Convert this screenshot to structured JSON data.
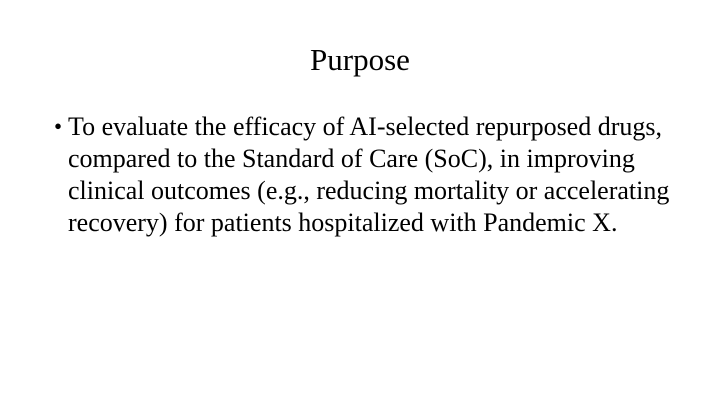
{
  "slide": {
    "title": "Purpose",
    "bullets": [
      {
        "marker": "•",
        "text": "To evaluate the efficacy of AI-selected repurposed drugs, compared to the Standard of Care (SoC), in improving clinical outcomes (e.g., reducing mortality or accelerating recovery) for patients hospitalized with Pandemic X."
      }
    ]
  }
}
